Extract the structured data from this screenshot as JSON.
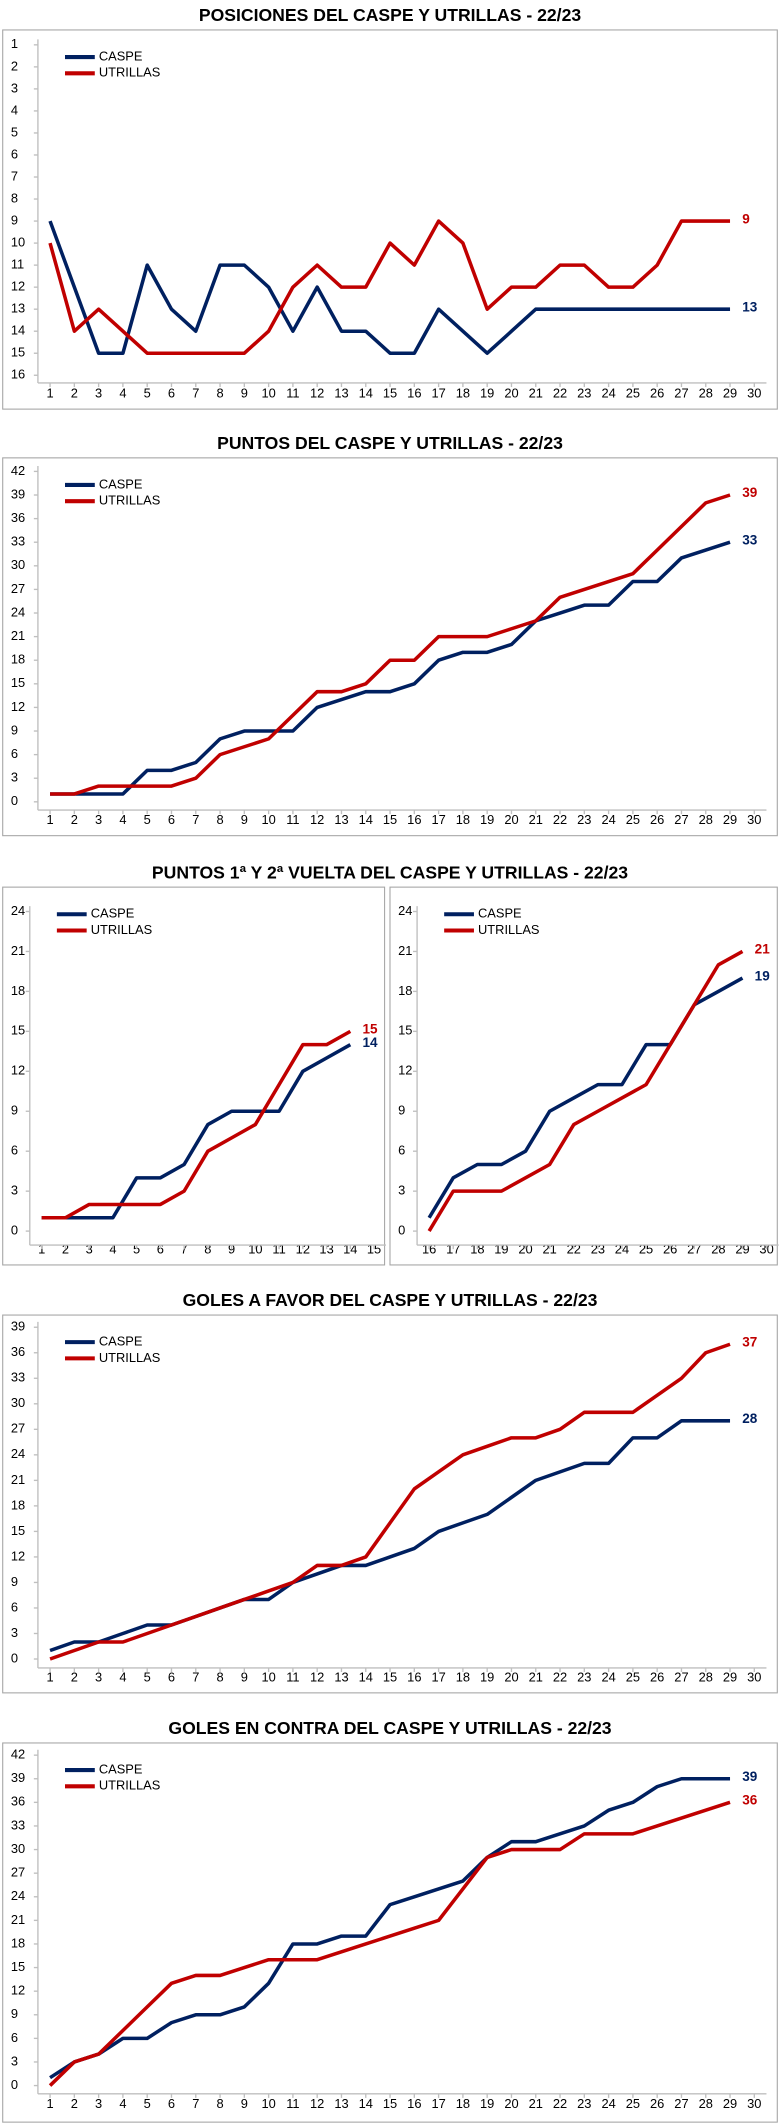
{
  "chart_data": [
    {
      "type": "line",
      "title": "POSICIONES DEL CASPE Y UTRILLAS - 22/23",
      "x": [
        1,
        2,
        3,
        4,
        5,
        6,
        7,
        8,
        9,
        10,
        11,
        12,
        13,
        14,
        15,
        16,
        17,
        18,
        19,
        20,
        21,
        22,
        23,
        24,
        25,
        26,
        27,
        28,
        29
      ],
      "series": [
        {
          "name": "CASPE",
          "color": "#002060",
          "values": [
            9,
            12,
            15,
            15,
            11,
            13,
            14,
            11,
            11,
            12,
            14,
            12,
            14,
            14,
            15,
            15,
            13,
            14,
            15,
            14,
            13,
            13,
            13,
            13,
            13,
            13,
            13,
            13,
            13
          ]
        },
        {
          "name": "UTRILLAS",
          "color": "#c00000",
          "values": [
            10,
            14,
            13,
            14,
            15,
            15,
            15,
            15,
            15,
            14,
            12,
            11,
            12,
            12,
            10,
            11,
            9,
            10,
            13,
            12,
            12,
            11,
            11,
            12,
            12,
            11,
            9,
            9,
            9
          ]
        }
      ],
      "xlim": [
        0.5,
        30.5
      ],
      "ylim": [
        16,
        1
      ],
      "xticks": [
        1,
        2,
        3,
        4,
        5,
        6,
        7,
        8,
        9,
        10,
        11,
        12,
        13,
        14,
        15,
        16,
        17,
        18,
        19,
        20,
        21,
        22,
        23,
        24,
        25,
        26,
        27,
        28,
        29,
        30
      ],
      "yticks": [
        1,
        2,
        3,
        4,
        5,
        6,
        7,
        8,
        9,
        10,
        11,
        12,
        13,
        14,
        15,
        16
      ],
      "legend": "upper left"
    },
    {
      "type": "line",
      "title": "PUNTOS DEL CASPE Y UTRILLAS - 22/23",
      "x": [
        1,
        2,
        3,
        4,
        5,
        6,
        7,
        8,
        9,
        10,
        11,
        12,
        13,
        14,
        15,
        16,
        17,
        18,
        19,
        20,
        21,
        22,
        23,
        24,
        25,
        26,
        27,
        28,
        29
      ],
      "series": [
        {
          "name": "CASPE",
          "color": "#002060",
          "values": [
            1,
            1,
            1,
            1,
            4,
            4,
            5,
            8,
            9,
            9,
            9,
            12,
            13,
            14,
            14,
            15,
            18,
            19,
            19,
            20,
            23,
            24,
            25,
            25,
            28,
            28,
            31,
            32,
            33
          ]
        },
        {
          "name": "UTRILLAS",
          "color": "#c00000",
          "values": [
            1,
            1,
            2,
            2,
            2,
            2,
            3,
            6,
            7,
            8,
            11,
            14,
            14,
            15,
            18,
            18,
            21,
            21,
            21,
            22,
            23,
            26,
            27,
            28,
            29,
            32,
            35,
            38,
            39
          ]
        }
      ],
      "xlim": [
        0.5,
        30.5
      ],
      "ylim": [
        0,
        42
      ],
      "xticks": [
        1,
        2,
        3,
        4,
        5,
        6,
        7,
        8,
        9,
        10,
        11,
        12,
        13,
        14,
        15,
        16,
        17,
        18,
        19,
        20,
        21,
        22,
        23,
        24,
        25,
        26,
        27,
        28,
        29,
        30
      ],
      "yticks": [
        0,
        3,
        6,
        9,
        12,
        15,
        18,
        21,
        24,
        27,
        30,
        33,
        36,
        39,
        42
      ],
      "legend": "upper left"
    },
    {
      "type": "line",
      "title": "PUNTOS 1ª Y 2ª VUELTA DEL CASPE Y UTRILLAS - 22/23",
      "x": [
        1,
        2,
        3,
        4,
        5,
        6,
        7,
        8,
        9,
        10,
        11,
        12,
        13,
        14
      ],
      "series": [
        {
          "name": "CASPE",
          "color": "#002060",
          "values": [
            1,
            1,
            1,
            1,
            4,
            4,
            5,
            8,
            9,
            9,
            9,
            12,
            13,
            14
          ]
        },
        {
          "name": "UTRILLAS",
          "color": "#c00000",
          "values": [
            1,
            1,
            2,
            2,
            2,
            2,
            3,
            6,
            7,
            8,
            11,
            14,
            14,
            15
          ]
        }
      ],
      "xlim": [
        0.5,
        15.5
      ],
      "ylim": [
        0,
        24
      ],
      "xticks": [
        1,
        2,
        3,
        4,
        5,
        6,
        7,
        8,
        9,
        10,
        11,
        12,
        13,
        14,
        15
      ],
      "yticks": [
        0,
        3,
        6,
        9,
        12,
        15,
        18,
        21,
        24
      ],
      "legend": "upper left"
    },
    {
      "type": "line",
      "x": [
        16,
        17,
        18,
        19,
        20,
        21,
        22,
        23,
        24,
        25,
        26,
        27,
        28,
        29
      ],
      "series": [
        {
          "name": "CASPE",
          "color": "#002060",
          "values": [
            1,
            4,
            5,
            5,
            6,
            9,
            10,
            11,
            11,
            14,
            14,
            17,
            18,
            19
          ]
        },
        {
          "name": "UTRILLAS",
          "color": "#c00000",
          "values": [
            0,
            3,
            3,
            3,
            4,
            5,
            8,
            9,
            10,
            11,
            14,
            17,
            20,
            21
          ]
        }
      ],
      "xlim": [
        15.5,
        30.5
      ],
      "ylim": [
        0,
        24
      ],
      "xticks": [
        16,
        17,
        18,
        19,
        20,
        21,
        22,
        23,
        24,
        25,
        26,
        27,
        28,
        29,
        30
      ],
      "yticks": [
        0,
        3,
        6,
        9,
        12,
        15,
        18,
        21,
        24
      ],
      "legend": "upper left"
    },
    {
      "type": "line",
      "title": "GOLES A FAVOR DEL CASPE Y UTRILLAS - 22/23",
      "x": [
        1,
        2,
        3,
        4,
        5,
        6,
        7,
        8,
        9,
        10,
        11,
        12,
        13,
        14,
        15,
        16,
        17,
        18,
        19,
        20,
        21,
        22,
        23,
        24,
        25,
        26,
        27,
        28,
        29
      ],
      "series": [
        {
          "name": "CASPE",
          "color": "#002060",
          "values": [
            1,
            2,
            2,
            3,
            4,
            4,
            5,
            6,
            7,
            7,
            9,
            10,
            11,
            11,
            12,
            13,
            15,
            16,
            17,
            19,
            21,
            22,
            23,
            23,
            26,
            26,
            28,
            28,
            28
          ]
        },
        {
          "name": "UTRILLAS",
          "color": "#c00000",
          "values": [
            0,
            1,
            2,
            2,
            3,
            4,
            5,
            6,
            7,
            8,
            9,
            11,
            11,
            12,
            16,
            20,
            22,
            24,
            25,
            26,
            26,
            27,
            29,
            29,
            29,
            31,
            33,
            36,
            37
          ]
        }
      ],
      "xlim": [
        0.5,
        30.5
      ],
      "ylim": [
        0,
        39
      ],
      "xticks": [
        1,
        2,
        3,
        4,
        5,
        6,
        7,
        8,
        9,
        10,
        11,
        12,
        13,
        14,
        15,
        16,
        17,
        18,
        19,
        20,
        21,
        22,
        23,
        24,
        25,
        26,
        27,
        28,
        29,
        30
      ],
      "yticks": [
        0,
        3,
        6,
        9,
        12,
        15,
        18,
        21,
        24,
        27,
        30,
        33,
        36,
        39
      ],
      "legend": "upper left"
    },
    {
      "type": "line",
      "title": "GOLES EN CONTRA DEL CASPE Y UTRILLAS - 22/23",
      "x": [
        1,
        2,
        3,
        4,
        5,
        6,
        7,
        8,
        9,
        10,
        11,
        12,
        13,
        14,
        15,
        16,
        17,
        18,
        19,
        20,
        21,
        22,
        23,
        24,
        25,
        26,
        27,
        28,
        29
      ],
      "series": [
        {
          "name": "CASPE",
          "color": "#002060",
          "values": [
            1,
            3,
            4,
            6,
            6,
            8,
            9,
            9,
            10,
            13,
            18,
            18,
            19,
            19,
            23,
            24,
            25,
            26,
            29,
            31,
            31,
            32,
            33,
            35,
            36,
            38,
            39,
            39,
            39
          ]
        },
        {
          "name": "UTRILLAS",
          "color": "#c00000",
          "values": [
            0,
            3,
            4,
            7,
            10,
            13,
            14,
            14,
            15,
            16,
            16,
            16,
            17,
            18,
            19,
            20,
            21,
            25,
            29,
            30,
            30,
            30,
            32,
            32,
            32,
            33,
            34,
            35,
            36
          ]
        }
      ],
      "xlim": [
        0.5,
        30.5
      ],
      "ylim": [
        0,
        42
      ],
      "xticks": [
        1,
        2,
        3,
        4,
        5,
        6,
        7,
        8,
        9,
        10,
        11,
        12,
        13,
        14,
        15,
        16,
        17,
        18,
        19,
        20,
        21,
        22,
        23,
        24,
        25,
        26,
        27,
        28,
        29,
        30
      ],
      "yticks": [
        0,
        3,
        6,
        9,
        12,
        15,
        18,
        21,
        24,
        27,
        30,
        33,
        36,
        39,
        42
      ],
      "legend": "upper left"
    }
  ]
}
